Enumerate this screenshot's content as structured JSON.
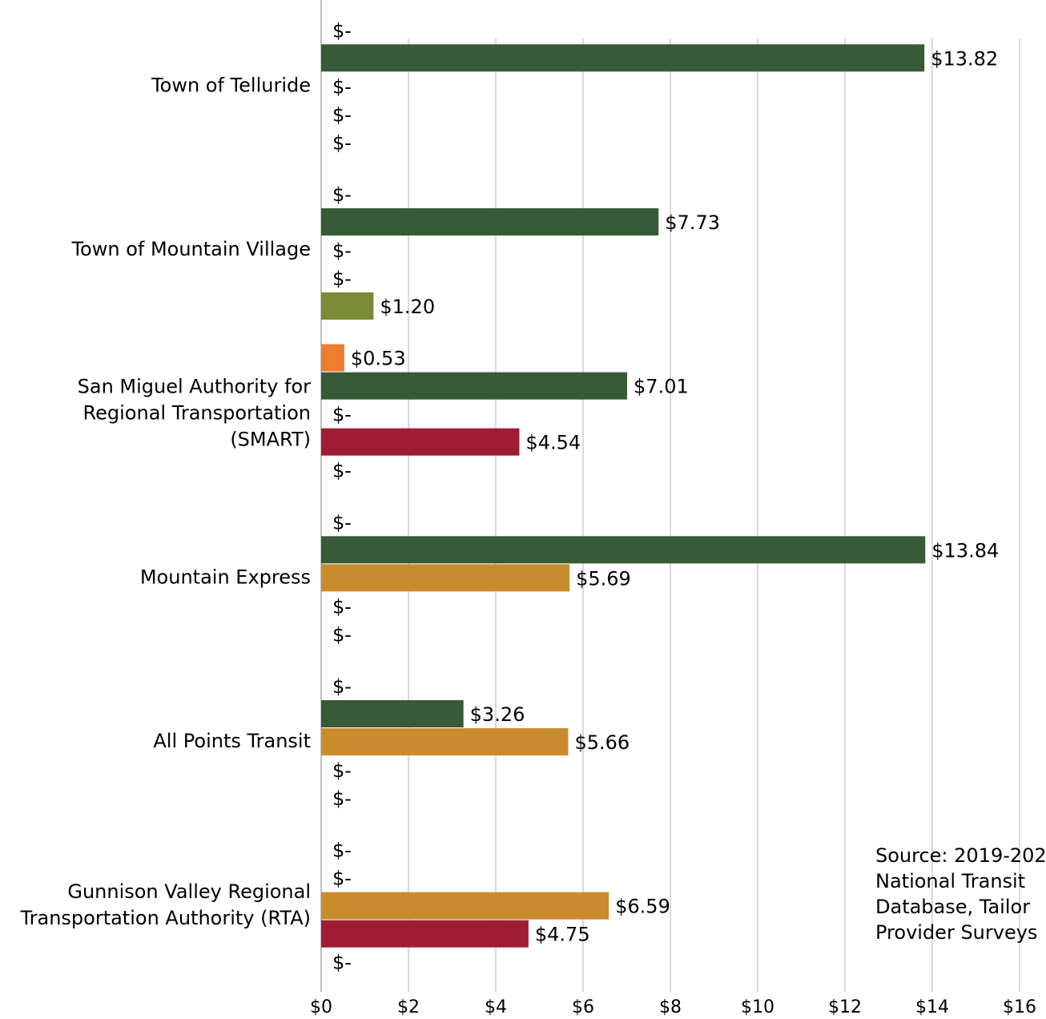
{
  "chart_data": {
    "type": "bar",
    "orientation": "horizontal",
    "categories": [
      [
        "Town of Telluride"
      ],
      [
        "Town of Mountain Village"
      ],
      [
        "San Miguel Authority for",
        "Regional Transportation",
        "(SMART)"
      ],
      [
        "Mountain Express"
      ],
      [
        "All Points Transit"
      ],
      [
        "Gunnison Valley Regional",
        "Transportation Authority (RTA)"
      ]
    ],
    "series": [
      {
        "color": "#ed7d31",
        "values": [
          0,
          0,
          0.53,
          0,
          0,
          0
        ],
        "value_labels": [
          "$-",
          "$-",
          "$0.53",
          "$-",
          "$-",
          "$-"
        ]
      },
      {
        "color": "#375a37",
        "values": [
          13.82,
          7.73,
          7.01,
          13.84,
          3.26,
          0
        ],
        "value_labels": [
          "$13.82",
          "$7.73",
          "$7.01",
          "$13.84",
          "$3.26",
          "$-"
        ]
      },
      {
        "color": "#c98b2e",
        "values": [
          0,
          0,
          0,
          5.69,
          5.66,
          6.59
        ],
        "value_labels": [
          "$-",
          "$-",
          "$-",
          "$5.69",
          "$5.66",
          "$6.59"
        ]
      },
      {
        "color": "#a01c35",
        "values": [
          0,
          0,
          4.54,
          0,
          0,
          4.75
        ],
        "value_labels": [
          "$-",
          "$-",
          "$4.54",
          "$-",
          "$-",
          "$4.75"
        ]
      },
      {
        "color": "#7a8a35",
        "values": [
          0,
          1.2,
          0,
          0,
          0,
          0
        ],
        "value_labels": [
          "$-",
          "$1.20",
          "$-",
          "$-",
          "$-",
          "$-"
        ]
      }
    ],
    "xlim": [
      0,
      16
    ],
    "xticks": [
      {
        "value": 0,
        "label": "$0"
      },
      {
        "value": 2,
        "label": "$2"
      },
      {
        "value": 4,
        "label": "$4"
      },
      {
        "value": 6,
        "label": "$6"
      },
      {
        "value": 8,
        "label": "$8"
      },
      {
        "value": 10,
        "label": "$10"
      },
      {
        "value": 12,
        "label": "$12"
      },
      {
        "value": 14,
        "label": "$14"
      },
      {
        "value": 16,
        "label": "$16"
      }
    ],
    "grid": true,
    "annotation": [
      "Source: 2019-202",
      "National Transit",
      "Database, Tailor",
      "Provider Surveys"
    ]
  }
}
